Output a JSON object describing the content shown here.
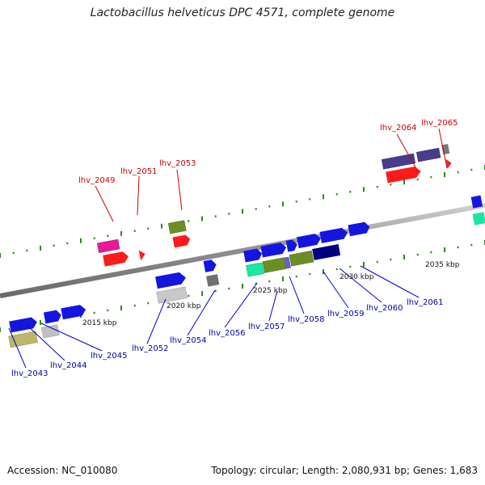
{
  "title": "Lactobacillus helveticus DPC 4571, complete genome",
  "footer": {
    "accession": "Accession: NC_010080",
    "summary": "Topology: circular; Length: 2,080,931 bp; Genes: 1,683"
  },
  "scale_labels": [
    "2015 kbp",
    "2020 kbp",
    "2025 kbp",
    "2030 kbp",
    "2035 kbp"
  ],
  "gene_labels_top": [
    "lhv_2049",
    "lhv_2051",
    "lhv_2053",
    "lhv_2064",
    "lhv_2065"
  ],
  "gene_labels_bottom": [
    "lhv_2043",
    "lhv_2044",
    "lhv_2045",
    "lhv_2052",
    "lhv_2054",
    "lhv_2056",
    "lhv_2057",
    "lhv_2058",
    "lhv_2059",
    "lhv_2060",
    "lhv_2061"
  ],
  "colors": {
    "label_top": "#cc0000",
    "label_bottom": "#0000aa",
    "backbone": "#8a8a8a",
    "tick": "#2a8a1a"
  }
}
